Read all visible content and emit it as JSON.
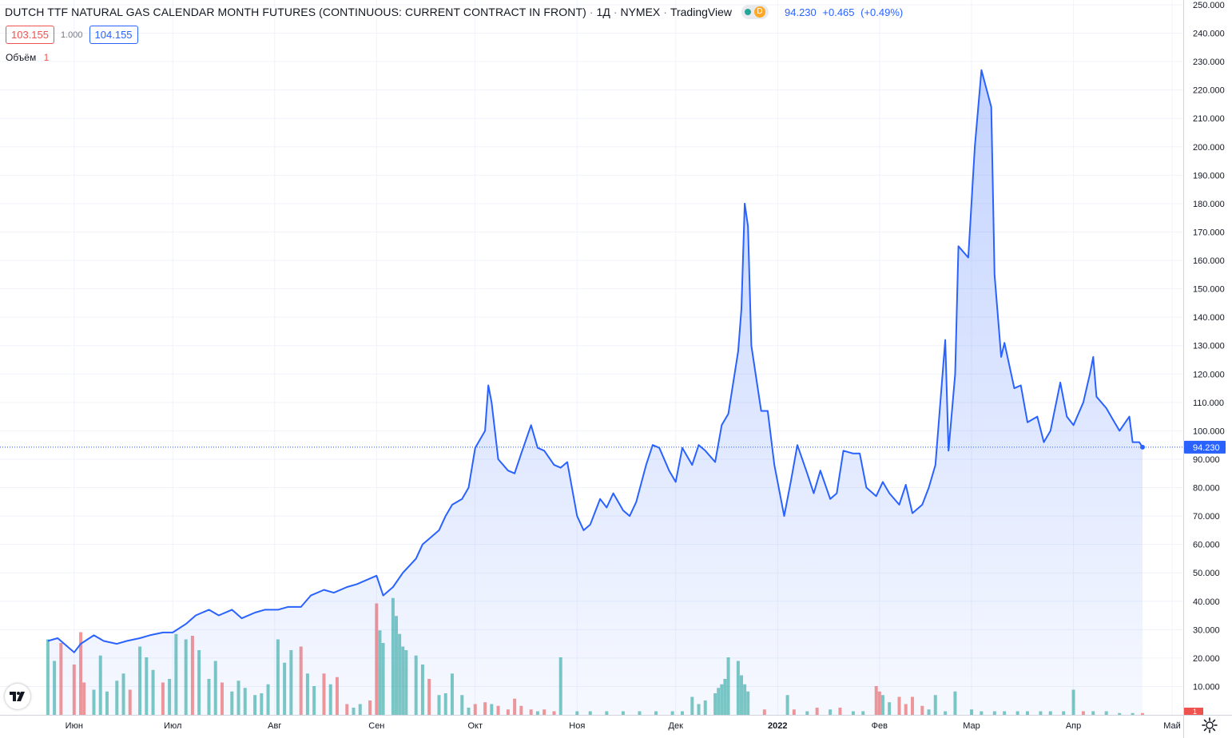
{
  "header": {
    "title": "DUTCH TTF NATURAL GAS CALENDAR MONTH FUTURES (CONTINUOUS: CURRENT CONTRACT IN FRONT)",
    "interval": "1Д",
    "exchange": "NYMEX",
    "source": "TradingView",
    "status_badge": "D",
    "last_price": "94.230",
    "change": "+0.465",
    "change_pct": "(+0.49%)"
  },
  "order": {
    "sell": "103.155",
    "spread": "1.000",
    "buy": "104.155"
  },
  "volume_legend": {
    "label": "Объём",
    "value": "1"
  },
  "icons": {
    "logo": "tradingview-logo-icon",
    "settings": "gear-icon",
    "status": "green-dot-icon"
  },
  "colors": {
    "line": "#2962ff",
    "area": "#2962ff",
    "volume_up": "#26a69a",
    "volume_down": "#ef5350",
    "grid": "#f0f3fa",
    "axis_text": "#131722"
  },
  "chart_data": {
    "type": "area",
    "title": "DUTCH TTF NATURAL GAS CALENDAR MONTH FUTURES (CONTINUOUS: CURRENT CONTRACT IN FRONT)",
    "ylim": [
      0,
      250
    ],
    "y_ticks": [
      "10.000",
      "20.000",
      "30.000",
      "40.000",
      "50.000",
      "60.000",
      "70.000",
      "80.000",
      "90.000",
      "100.000",
      "110.000",
      "120.000",
      "130.000",
      "140.000",
      "150.000",
      "160.000",
      "170.000",
      "180.000",
      "190.000",
      "200.000",
      "210.000",
      "220.000",
      "230.000",
      "240.000",
      "250.000"
    ],
    "x_ticks": [
      "Июн",
      "Июл",
      "Авг",
      "Сен",
      "Окт",
      "Ноя",
      "Дек",
      "2022",
      "Фев",
      "Мар",
      "Апр",
      "Май"
    ],
    "current_price_label": "94.230",
    "volume_axis_label": "1",
    "grid": true,
    "price_series": [
      [
        "2021-05-24",
        26
      ],
      [
        "2021-05-27",
        27
      ],
      [
        "2021-06-01",
        22
      ],
      [
        "2021-06-03",
        25
      ],
      [
        "2021-06-07",
        28
      ],
      [
        "2021-06-10",
        26
      ],
      [
        "2021-06-14",
        25
      ],
      [
        "2021-06-17",
        26
      ],
      [
        "2021-06-21",
        27
      ],
      [
        "2021-06-24",
        28
      ],
      [
        "2021-06-28",
        29
      ],
      [
        "2021-07-01",
        29
      ],
      [
        "2021-07-05",
        32
      ],
      [
        "2021-07-08",
        35
      ],
      [
        "2021-07-12",
        37
      ],
      [
        "2021-07-15",
        35
      ],
      [
        "2021-07-19",
        37
      ],
      [
        "2021-07-22",
        34
      ],
      [
        "2021-07-26",
        36
      ],
      [
        "2021-07-29",
        37
      ],
      [
        "2021-08-02",
        37
      ],
      [
        "2021-08-05",
        38
      ],
      [
        "2021-08-09",
        38
      ],
      [
        "2021-08-12",
        42
      ],
      [
        "2021-08-16",
        44
      ],
      [
        "2021-08-19",
        43
      ],
      [
        "2021-08-23",
        45
      ],
      [
        "2021-08-26",
        46
      ],
      [
        "2021-08-30",
        48
      ],
      [
        "2021-09-01",
        49
      ],
      [
        "2021-09-03",
        42
      ],
      [
        "2021-09-06",
        45
      ],
      [
        "2021-09-09",
        50
      ],
      [
        "2021-09-13",
        55
      ],
      [
        "2021-09-15",
        60
      ],
      [
        "2021-09-17",
        62
      ],
      [
        "2021-09-20",
        65
      ],
      [
        "2021-09-22",
        70
      ],
      [
        "2021-09-24",
        74
      ],
      [
        "2021-09-27",
        76
      ],
      [
        "2021-09-29",
        80
      ],
      [
        "2021-10-01",
        94
      ],
      [
        "2021-10-04",
        100
      ],
      [
        "2021-10-05",
        116
      ],
      [
        "2021-10-06",
        110
      ],
      [
        "2021-10-08",
        90
      ],
      [
        "2021-10-11",
        86
      ],
      [
        "2021-10-13",
        85
      ],
      [
        "2021-10-15",
        92
      ],
      [
        "2021-10-18",
        102
      ],
      [
        "2021-10-20",
        94
      ],
      [
        "2021-10-22",
        93
      ],
      [
        "2021-10-25",
        88
      ],
      [
        "2021-10-27",
        87
      ],
      [
        "2021-10-29",
        89
      ],
      [
        "2021-11-01",
        70
      ],
      [
        "2021-11-03",
        65
      ],
      [
        "2021-11-05",
        67
      ],
      [
        "2021-11-08",
        76
      ],
      [
        "2021-11-10",
        73
      ],
      [
        "2021-11-12",
        78
      ],
      [
        "2021-11-15",
        72
      ],
      [
        "2021-11-17",
        70
      ],
      [
        "2021-11-19",
        75
      ],
      [
        "2021-11-22",
        88
      ],
      [
        "2021-11-24",
        95
      ],
      [
        "2021-11-26",
        94
      ],
      [
        "2021-11-29",
        86
      ],
      [
        "2021-12-01",
        82
      ],
      [
        "2021-12-03",
        94
      ],
      [
        "2021-12-06",
        88
      ],
      [
        "2021-12-08",
        95
      ],
      [
        "2021-12-10",
        93
      ],
      [
        "2021-12-13",
        89
      ],
      [
        "2021-12-15",
        102
      ],
      [
        "2021-12-17",
        106
      ],
      [
        "2021-12-20",
        128
      ],
      [
        "2021-12-21",
        143
      ],
      [
        "2021-12-22",
        180
      ],
      [
        "2021-12-23",
        172
      ],
      [
        "2021-12-24",
        130
      ],
      [
        "2021-12-27",
        107
      ],
      [
        "2021-12-29",
        107
      ],
      [
        "2021-12-31",
        88
      ],
      [
        "2022-01-03",
        70
      ],
      [
        "2022-01-05",
        82
      ],
      [
        "2022-01-07",
        95
      ],
      [
        "2022-01-10",
        85
      ],
      [
        "2022-01-12",
        78
      ],
      [
        "2022-01-14",
        86
      ],
      [
        "2022-01-17",
        76
      ],
      [
        "2022-01-19",
        78
      ],
      [
        "2022-01-21",
        93
      ],
      [
        "2022-01-24",
        92
      ],
      [
        "2022-01-26",
        92
      ],
      [
        "2022-01-28",
        80
      ],
      [
        "2022-01-31",
        77
      ],
      [
        "2022-02-02",
        82
      ],
      [
        "2022-02-04",
        78
      ],
      [
        "2022-02-07",
        74
      ],
      [
        "2022-02-09",
        81
      ],
      [
        "2022-02-11",
        71
      ],
      [
        "2022-02-14",
        74
      ],
      [
        "2022-02-16",
        80
      ],
      [
        "2022-02-18",
        88
      ],
      [
        "2022-02-21",
        132
      ],
      [
        "2022-02-22",
        93
      ],
      [
        "2022-02-24",
        120
      ],
      [
        "2022-02-25",
        165
      ],
      [
        "2022-02-28",
        161
      ],
      [
        "2022-03-02",
        200
      ],
      [
        "2022-03-04",
        227
      ],
      [
        "2022-03-07",
        214
      ],
      [
        "2022-03-08",
        155
      ],
      [
        "2022-03-10",
        126
      ],
      [
        "2022-03-11",
        131
      ],
      [
        "2022-03-14",
        115
      ],
      [
        "2022-03-16",
        116
      ],
      [
        "2022-03-18",
        103
      ],
      [
        "2022-03-21",
        105
      ],
      [
        "2022-03-23",
        96
      ],
      [
        "2022-03-25",
        100
      ],
      [
        "2022-03-28",
        117
      ],
      [
        "2022-03-30",
        105
      ],
      [
        "2022-04-01",
        102
      ],
      [
        "2022-04-04",
        110
      ],
      [
        "2022-04-06",
        120
      ],
      [
        "2022-04-07",
        126
      ],
      [
        "2022-04-08",
        112
      ],
      [
        "2022-04-11",
        108
      ],
      [
        "2022-04-13",
        104
      ],
      [
        "2022-04-15",
        100
      ],
      [
        "2022-04-18",
        105
      ],
      [
        "2022-04-19",
        96
      ],
      [
        "2022-04-21",
        96
      ],
      [
        "2022-04-22",
        94.23
      ]
    ],
    "volume_series": [
      [
        "2021-05-24",
        42,
        "up"
      ],
      [
        "2021-05-26",
        30,
        "up"
      ],
      [
        "2021-05-28",
        40,
        "down"
      ],
      [
        "2021-06-01",
        28,
        "down"
      ],
      [
        "2021-06-03",
        46,
        "down"
      ],
      [
        "2021-06-04",
        18,
        "down"
      ],
      [
        "2021-06-07",
        14,
        "up"
      ],
      [
        "2021-06-09",
        33,
        "up"
      ],
      [
        "2021-06-11",
        13,
        "up"
      ],
      [
        "2021-06-14",
        19,
        "up"
      ],
      [
        "2021-06-16",
        23,
        "up"
      ],
      [
        "2021-06-18",
        14,
        "down"
      ],
      [
        "2021-06-21",
        38,
        "up"
      ],
      [
        "2021-06-23",
        32,
        "up"
      ],
      [
        "2021-06-25",
        25,
        "up"
      ],
      [
        "2021-06-28",
        18,
        "down"
      ],
      [
        "2021-06-30",
        20,
        "up"
      ],
      [
        "2021-07-02",
        45,
        "up"
      ],
      [
        "2021-07-05",
        42,
        "up"
      ],
      [
        "2021-07-07",
        44,
        "down"
      ],
      [
        "2021-07-09",
        36,
        "up"
      ],
      [
        "2021-07-12",
        20,
        "up"
      ],
      [
        "2021-07-14",
        30,
        "up"
      ],
      [
        "2021-07-16",
        18,
        "down"
      ],
      [
        "2021-07-19",
        13,
        "up"
      ],
      [
        "2021-07-21",
        19,
        "up"
      ],
      [
        "2021-07-23",
        15,
        "up"
      ],
      [
        "2021-07-26",
        11,
        "up"
      ],
      [
        "2021-07-28",
        12,
        "up"
      ],
      [
        "2021-07-30",
        17,
        "up"
      ],
      [
        "2021-08-02",
        42,
        "up"
      ],
      [
        "2021-08-04",
        29,
        "up"
      ],
      [
        "2021-08-06",
        36,
        "up"
      ],
      [
        "2021-08-09",
        38,
        "down"
      ],
      [
        "2021-08-11",
        23,
        "up"
      ],
      [
        "2021-08-13",
        16,
        "up"
      ],
      [
        "2021-08-16",
        23,
        "down"
      ],
      [
        "2021-08-18",
        17,
        "up"
      ],
      [
        "2021-08-20",
        21,
        "down"
      ],
      [
        "2021-08-23",
        6,
        "down"
      ],
      [
        "2021-08-25",
        4,
        "up"
      ],
      [
        "2021-08-27",
        6,
        "up"
      ],
      [
        "2021-08-30",
        8,
        "down"
      ],
      [
        "2021-09-01",
        62,
        "down"
      ],
      [
        "2021-09-02",
        47,
        "up"
      ],
      [
        "2021-09-03",
        40,
        "up"
      ],
      [
        "2021-09-06",
        65,
        "up"
      ],
      [
        "2021-09-07",
        55,
        "up"
      ],
      [
        "2021-09-08",
        45,
        "up"
      ],
      [
        "2021-09-09",
        38,
        "up"
      ],
      [
        "2021-09-10",
        36,
        "up"
      ],
      [
        "2021-09-13",
        33,
        "up"
      ],
      [
        "2021-09-15",
        28,
        "up"
      ],
      [
        "2021-09-17",
        20,
        "down"
      ],
      [
        "2021-09-20",
        11,
        "up"
      ],
      [
        "2021-09-22",
        12,
        "up"
      ],
      [
        "2021-09-24",
        23,
        "up"
      ],
      [
        "2021-09-27",
        11,
        "up"
      ],
      [
        "2021-09-29",
        4,
        "up"
      ],
      [
        "2021-10-01",
        6,
        "down"
      ],
      [
        "2021-10-04",
        7,
        "down"
      ],
      [
        "2021-10-06",
        6,
        "up"
      ],
      [
        "2021-10-08",
        5,
        "down"
      ],
      [
        "2021-10-11",
        3,
        "down"
      ],
      [
        "2021-10-13",
        9,
        "down"
      ],
      [
        "2021-10-15",
        5,
        "down"
      ],
      [
        "2021-10-18",
        3,
        "down"
      ],
      [
        "2021-10-20",
        2,
        "up"
      ],
      [
        "2021-10-22",
        3,
        "down"
      ],
      [
        "2021-10-25",
        2,
        "down"
      ],
      [
        "2021-10-27",
        32,
        "up"
      ],
      [
        "2021-11-01",
        2,
        "up"
      ],
      [
        "2021-11-05",
        2,
        "up"
      ],
      [
        "2021-11-10",
        2,
        "up"
      ],
      [
        "2021-11-15",
        2,
        "up"
      ],
      [
        "2021-11-20",
        2,
        "up"
      ],
      [
        "2021-11-25",
        2,
        "up"
      ],
      [
        "2021-11-30",
        2,
        "up"
      ],
      [
        "2021-12-03",
        2,
        "up"
      ],
      [
        "2021-12-06",
        10,
        "up"
      ],
      [
        "2021-12-08",
        6,
        "up"
      ],
      [
        "2021-12-10",
        8,
        "up"
      ],
      [
        "2021-12-13",
        12,
        "up"
      ],
      [
        "2021-12-14",
        15,
        "up"
      ],
      [
        "2021-12-15",
        17,
        "up"
      ],
      [
        "2021-12-16",
        20,
        "up"
      ],
      [
        "2021-12-17",
        32,
        "up"
      ],
      [
        "2021-12-20",
        30,
        "up"
      ],
      [
        "2021-12-21",
        22,
        "up"
      ],
      [
        "2021-12-22",
        17,
        "up"
      ],
      [
        "2021-12-23",
        13,
        "up"
      ],
      [
        "2021-12-28",
        3,
        "down"
      ],
      [
        "2022-01-04",
        11,
        "up"
      ],
      [
        "2022-01-06",
        3,
        "down"
      ],
      [
        "2022-01-10",
        2,
        "up"
      ],
      [
        "2022-01-13",
        4,
        "down"
      ],
      [
        "2022-01-17",
        3,
        "up"
      ],
      [
        "2022-01-20",
        4,
        "down"
      ],
      [
        "2022-01-24",
        2,
        "up"
      ],
      [
        "2022-01-27",
        2,
        "up"
      ],
      [
        "2022-01-31",
        16,
        "down"
      ],
      [
        "2022-02-01",
        13,
        "down"
      ],
      [
        "2022-02-02",
        11,
        "up"
      ],
      [
        "2022-02-04",
        7,
        "up"
      ],
      [
        "2022-02-07",
        10,
        "down"
      ],
      [
        "2022-02-09",
        6,
        "down"
      ],
      [
        "2022-02-11",
        10,
        "down"
      ],
      [
        "2022-02-14",
        5,
        "down"
      ],
      [
        "2022-02-16",
        3,
        "up"
      ],
      [
        "2022-02-18",
        11,
        "up"
      ],
      [
        "2022-02-21",
        2,
        "up"
      ],
      [
        "2022-02-24",
        13,
        "up"
      ],
      [
        "2022-03-01",
        3,
        "up"
      ],
      [
        "2022-03-04",
        2,
        "up"
      ],
      [
        "2022-03-08",
        2,
        "up"
      ],
      [
        "2022-03-11",
        2,
        "up"
      ],
      [
        "2022-03-15",
        2,
        "up"
      ],
      [
        "2022-03-18",
        2,
        "up"
      ],
      [
        "2022-03-22",
        2,
        "up"
      ],
      [
        "2022-03-25",
        2,
        "up"
      ],
      [
        "2022-03-29",
        2,
        "up"
      ],
      [
        "2022-04-01",
        14,
        "up"
      ],
      [
        "2022-04-04",
        2,
        "down"
      ],
      [
        "2022-04-07",
        2,
        "up"
      ],
      [
        "2022-04-11",
        2,
        "up"
      ],
      [
        "2022-04-15",
        1,
        "up"
      ],
      [
        "2022-04-19",
        1,
        "up"
      ],
      [
        "2022-04-22",
        1,
        "down"
      ]
    ]
  }
}
